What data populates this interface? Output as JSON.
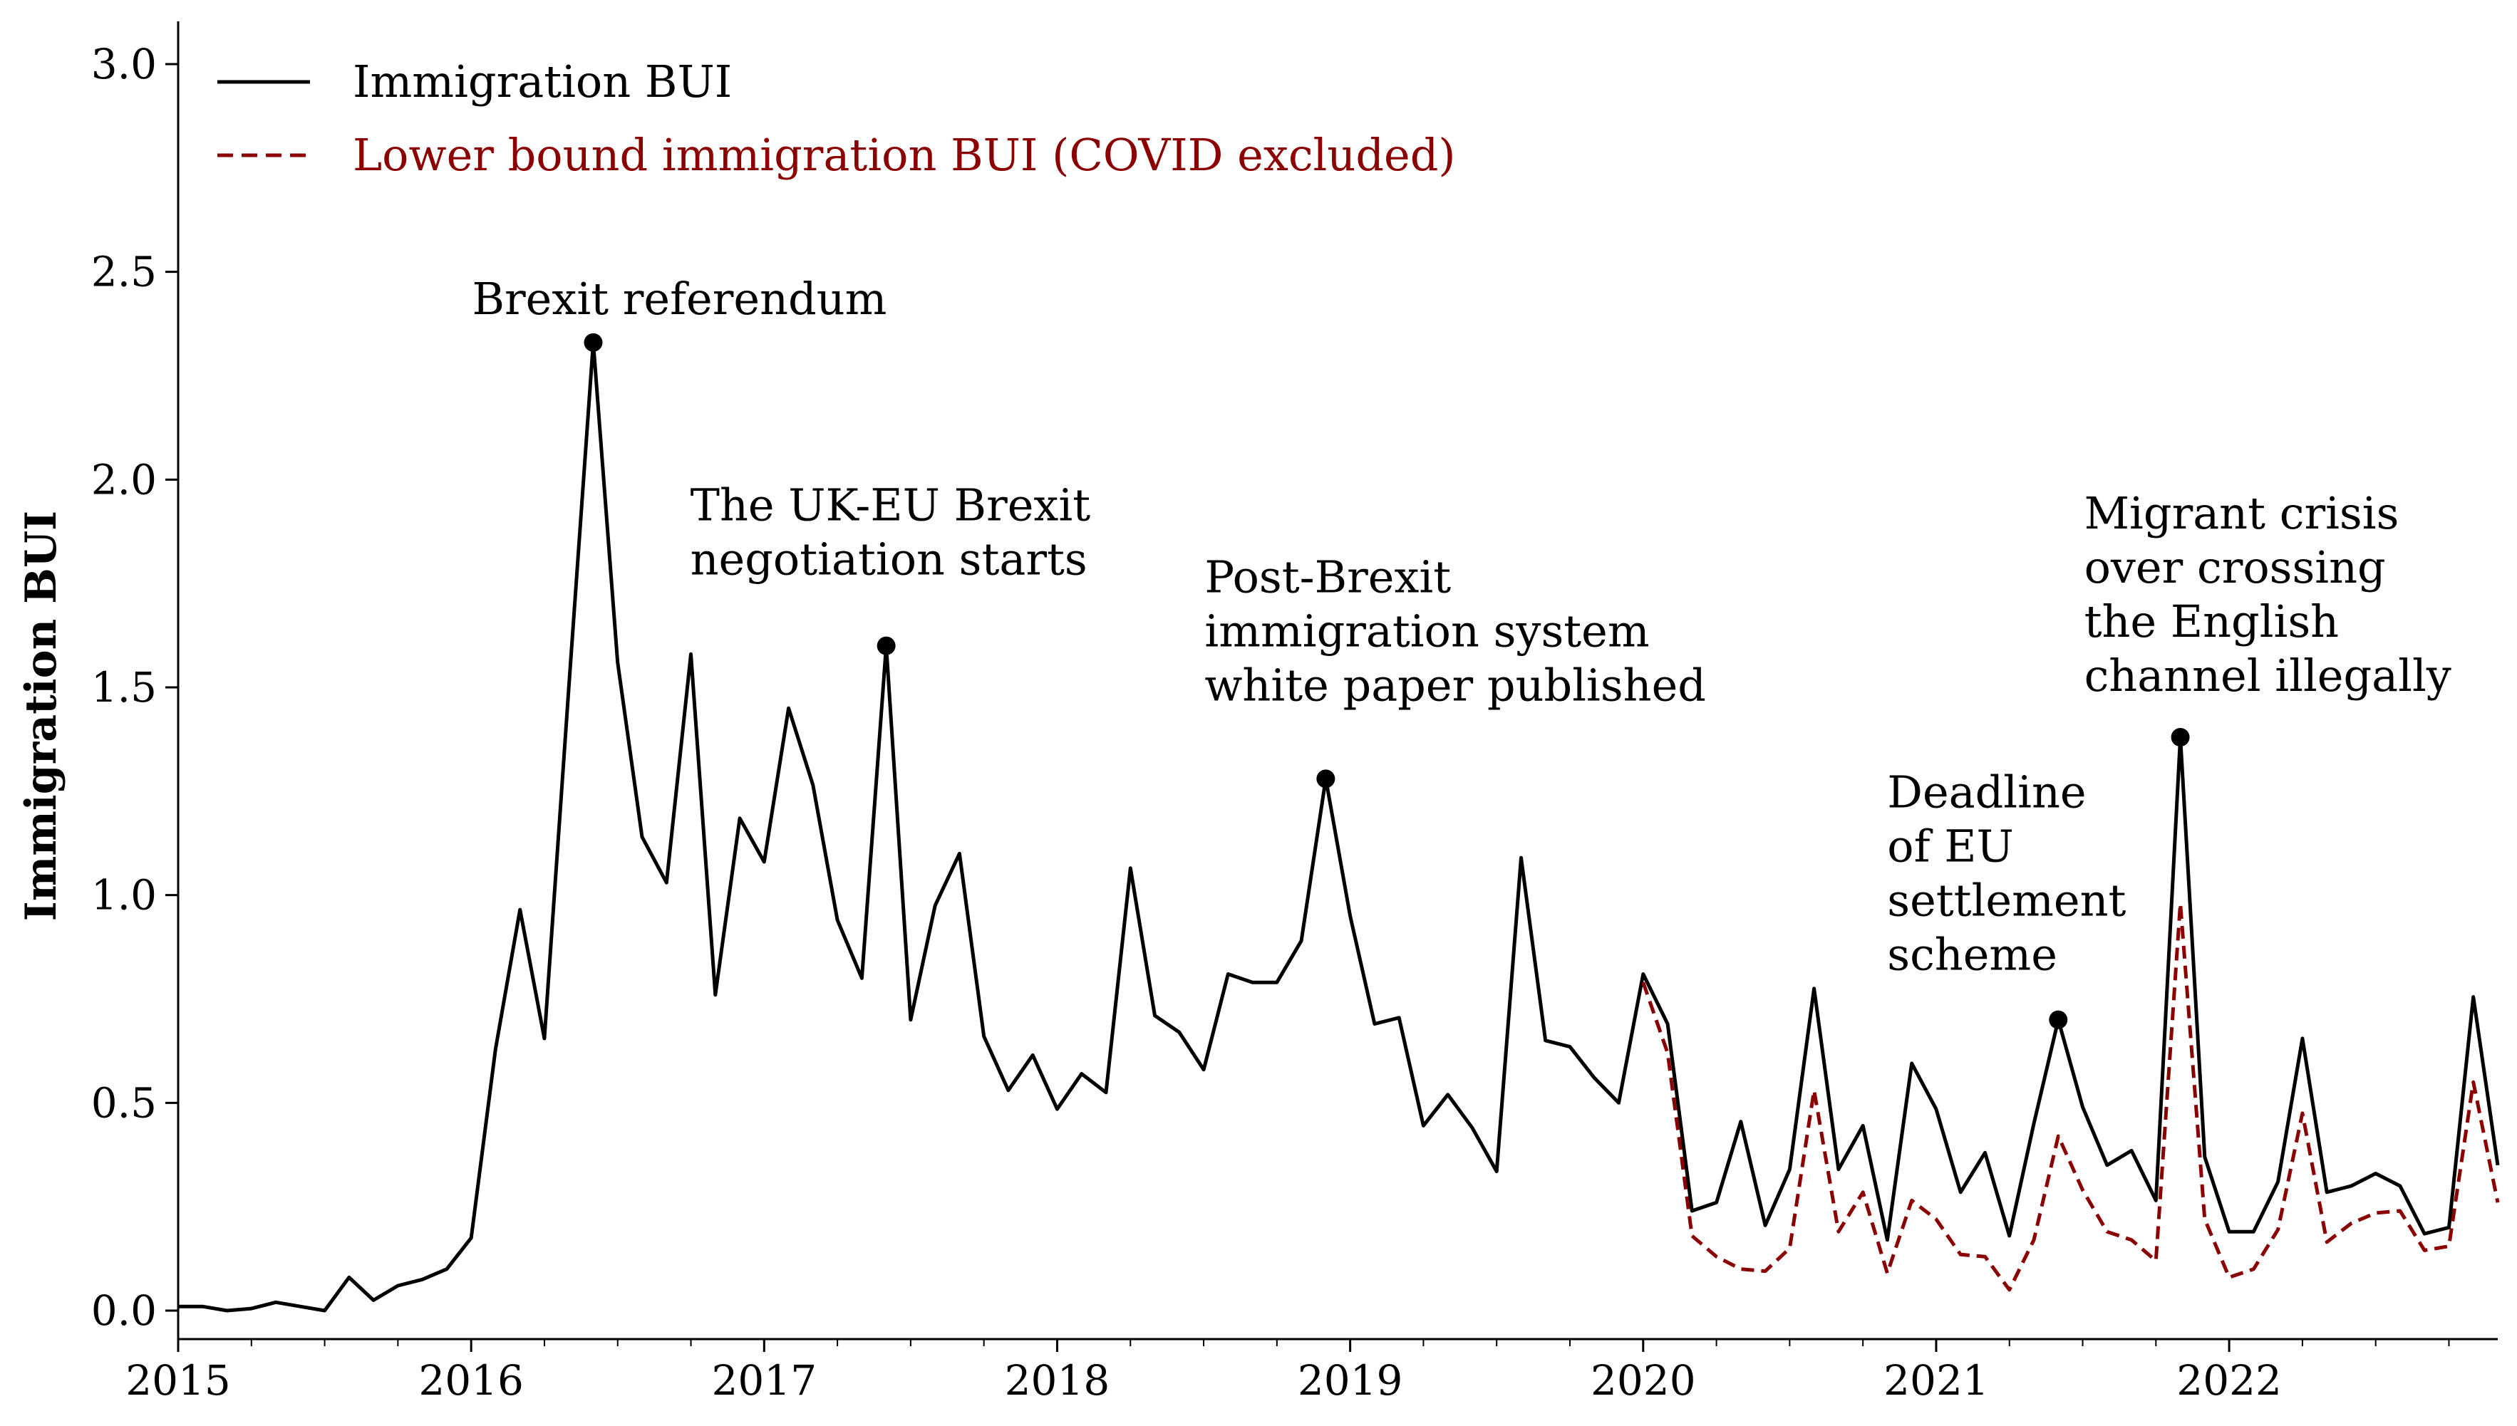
{
  "chart_data": {
    "type": "line",
    "title": "",
    "xlabel": "",
    "ylabel": "Immigration BUI",
    "xlim": [
      "2015-01",
      "2022-12"
    ],
    "ylim": [
      0,
      3.1
    ],
    "x_ticks": [
      "2015",
      "2016",
      "2017",
      "2018",
      "2019",
      "2020",
      "2021",
      "2022"
    ],
    "y_ticks": [
      "0.0",
      "0.5",
      "1.0",
      "1.5",
      "2.0",
      "2.5",
      "3.0"
    ],
    "legend": {
      "position": "top-left"
    },
    "series": [
      {
        "name": "Immigration BUI",
        "color": "#000000",
        "dash": "solid",
        "start": "2015-01",
        "values": [
          0.01,
          0.01,
          0.0,
          0.005,
          0.02,
          0.01,
          0.0,
          0.08,
          0.025,
          0.06,
          0.075,
          0.1,
          0.175,
          0.63,
          0.965,
          0.655,
          1.5,
          2.33,
          1.56,
          1.14,
          1.03,
          1.58,
          0.76,
          1.185,
          1.08,
          1.45,
          1.265,
          0.94,
          0.8,
          1.6,
          0.7,
          0.975,
          1.1,
          0.66,
          0.53,
          0.615,
          0.485,
          0.57,
          0.525,
          1.065,
          0.71,
          0.67,
          0.58,
          0.81,
          0.79,
          0.79,
          0.89,
          1.28,
          0.95,
          0.69,
          0.705,
          0.445,
          0.52,
          0.44,
          0.335,
          1.09,
          0.65,
          0.635,
          0.56,
          0.5,
          0.81,
          0.69,
          0.24,
          0.26,
          0.455,
          0.205,
          0.34,
          0.775,
          0.34,
          0.445,
          0.17,
          0.595,
          0.485,
          0.285,
          0.38,
          0.18,
          0.45,
          0.7,
          0.49,
          0.35,
          0.385,
          0.265,
          1.38,
          0.37,
          0.19,
          0.19,
          0.31,
          0.655,
          0.285,
          0.3,
          0.33,
          0.3,
          0.185,
          0.2,
          0.755,
          0.35
        ]
      },
      {
        "name": "Lower bound immigration BUI (COVID excluded)",
        "color": "#8b0000",
        "dash": "dashed",
        "start": "2020-01",
        "values": [
          0.79,
          0.62,
          0.18,
          0.13,
          0.1,
          0.095,
          0.15,
          0.53,
          0.19,
          0.285,
          0.09,
          0.265,
          0.22,
          0.135,
          0.13,
          0.05,
          0.17,
          0.42,
          0.29,
          0.19,
          0.17,
          0.12,
          0.98,
          0.22,
          0.08,
          0.1,
          0.195,
          0.475,
          0.165,
          0.21,
          0.235,
          0.24,
          0.145,
          0.155,
          0.55,
          0.26
        ]
      }
    ],
    "annotations": [
      {
        "label": "Brexit referendum",
        "lines": [
          "Brexit referendum"
        ],
        "x": "2016-06",
        "y": 2.33
      },
      {
        "label": "The UK-EU Brexit negotiation starts",
        "lines": [
          "The UK-EU Brexit",
          "negotiation starts"
        ],
        "x": "2017-06",
        "y": 1.6
      },
      {
        "label": "Post-Brexit immigration system white paper published",
        "lines": [
          "Post-Brexit",
          "immigration system",
          "white paper published"
        ],
        "x": "2018-12",
        "y": 1.28
      },
      {
        "label": "Deadline of EU settlement scheme",
        "lines": [
          "Deadline",
          "of EU",
          "settlement",
          "scheme"
        ],
        "x": "2021-06",
        "y": 0.7
      },
      {
        "label": "Migrant crisis over crossing the English channel illegally",
        "lines": [
          "Migrant crisis",
          "over crossing",
          "the English",
          "channel illegally"
        ],
        "x": "2021-11",
        "y": 1.38
      }
    ]
  }
}
